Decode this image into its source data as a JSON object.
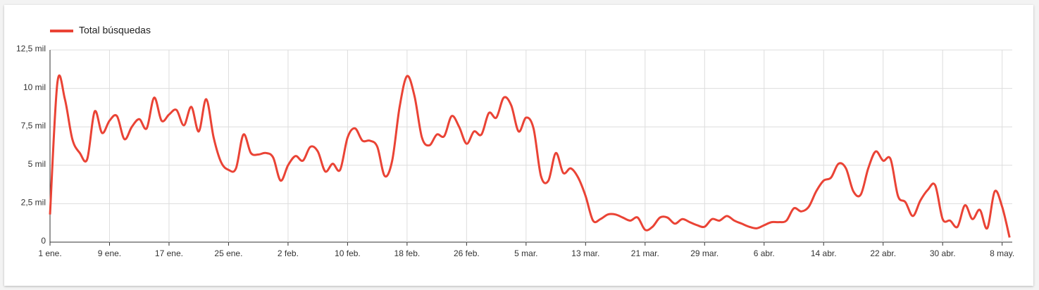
{
  "chart_data": {
    "type": "line",
    "categories": [
      "1 ene.",
      null,
      null,
      null,
      null,
      null,
      null,
      null,
      "9 ene.",
      null,
      null,
      null,
      null,
      null,
      null,
      null,
      "17 ene.",
      null,
      null,
      null,
      null,
      null,
      null,
      null,
      "25 ene.",
      null,
      null,
      null,
      null,
      null,
      null,
      null,
      "2 feb.",
      null,
      null,
      null,
      null,
      null,
      null,
      null,
      "10 feb.",
      null,
      null,
      null,
      null,
      null,
      null,
      null,
      "18 feb.",
      null,
      null,
      null,
      null,
      null,
      null,
      null,
      "26 feb.",
      null,
      null,
      null,
      null,
      null,
      null,
      null,
      "5 mar.",
      null,
      null,
      null,
      null,
      null,
      null,
      null,
      "13 mar.",
      null,
      null,
      null,
      null,
      null,
      null,
      null,
      "21 mar.",
      null,
      null,
      null,
      null,
      null,
      null,
      null,
      "29 mar.",
      null,
      null,
      null,
      null,
      null,
      null,
      null,
      "6 abr.",
      null,
      null,
      null,
      null,
      null,
      null,
      null,
      "14 abr.",
      null,
      null,
      null,
      null,
      null,
      null,
      null,
      "22 abr.",
      null,
      null,
      null,
      null,
      null,
      null,
      null,
      "30 abr.",
      null,
      null,
      null,
      null,
      null,
      null,
      null,
      "8 may.",
      null
    ],
    "series": [
      {
        "name": "Total búsquedas",
        "color": "#ea4335",
        "values": [
          1800,
          10400,
          9300,
          6700,
          5800,
          5400,
          8500,
          7100,
          7900,
          8200,
          6700,
          7500,
          8000,
          7400,
          9400,
          7900,
          8300,
          8600,
          7600,
          8800,
          7200,
          9300,
          6800,
          5200,
          4700,
          4800,
          7000,
          5800,
          5700,
          5800,
          5500,
          4000,
          5000,
          5600,
          5300,
          6200,
          5900,
          4600,
          5100,
          4700,
          6800,
          7400,
          6600,
          6600,
          6200,
          4300,
          5300,
          8800,
          10800,
          9500,
          6800,
          6300,
          7000,
          6900,
          8200,
          7500,
          6400,
          7200,
          7000,
          8400,
          8100,
          9400,
          8900,
          7200,
          8100,
          7400,
          4300,
          4000,
          5800,
          4500,
          4800,
          4200,
          3000,
          1400,
          1500,
          1800,
          1800,
          1600,
          1400,
          1600,
          800,
          1000,
          1600,
          1600,
          1200,
          1500,
          1300,
          1100,
          1000,
          1500,
          1400,
          1700,
          1400,
          1200,
          1000,
          900,
          1100,
          1300,
          1300,
          1400,
          2200,
          2000,
          2300,
          3300,
          4000,
          4200,
          5100,
          4800,
          3300,
          3100,
          4800,
          5900,
          5300,
          5400,
          3000,
          2600,
          1700,
          2700,
          3400,
          3700,
          1500,
          1400,
          1000,
          2400,
          1500,
          2100,
          900,
          3300,
          2300,
          300
        ]
      }
    ],
    "ylim": [
      0,
      12500
    ],
    "yticks": [
      0,
      {
        "value": 2500,
        "label": "2,5 mil"
      },
      {
        "value": 5000,
        "label": "5 mil"
      },
      {
        "value": 7500,
        "label": "7,5 mil"
      },
      {
        "value": 10000,
        "label": "10 mil"
      },
      {
        "value": 12500,
        "label": "12,5 mil"
      }
    ],
    "grid": true
  }
}
